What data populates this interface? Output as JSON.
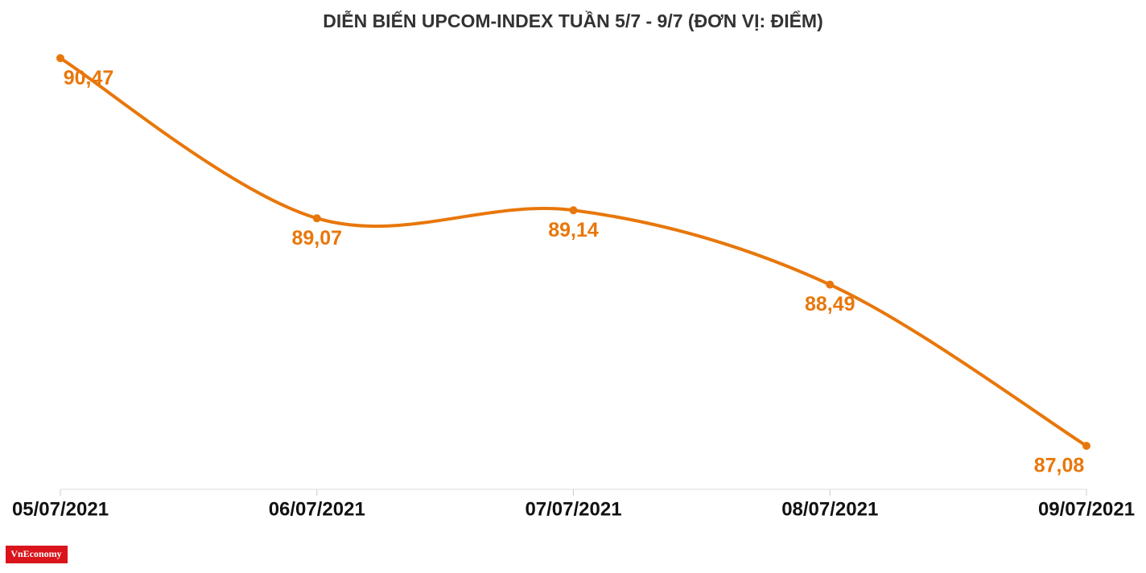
{
  "chart_data": {
    "type": "line",
    "title": "DIỄN BIẾN UPCOM-INDEX TUẦN 5/7 - 9/7 (ĐƠN VỊ: ĐIỂM)",
    "categories": [
      "05/07/2021",
      "06/07/2021",
      "07/07/2021",
      "08/07/2021",
      "09/07/2021"
    ],
    "values": [
      90.47,
      89.07,
      89.14,
      88.49,
      87.08
    ],
    "value_labels": [
      "90,47",
      "89,07",
      "89,14",
      "88,49",
      "87,08"
    ],
    "color": "#e8770b",
    "ylim": [
      86.7,
      90.5
    ],
    "grid": false,
    "smooth": true
  },
  "logo": "VnEconomy"
}
